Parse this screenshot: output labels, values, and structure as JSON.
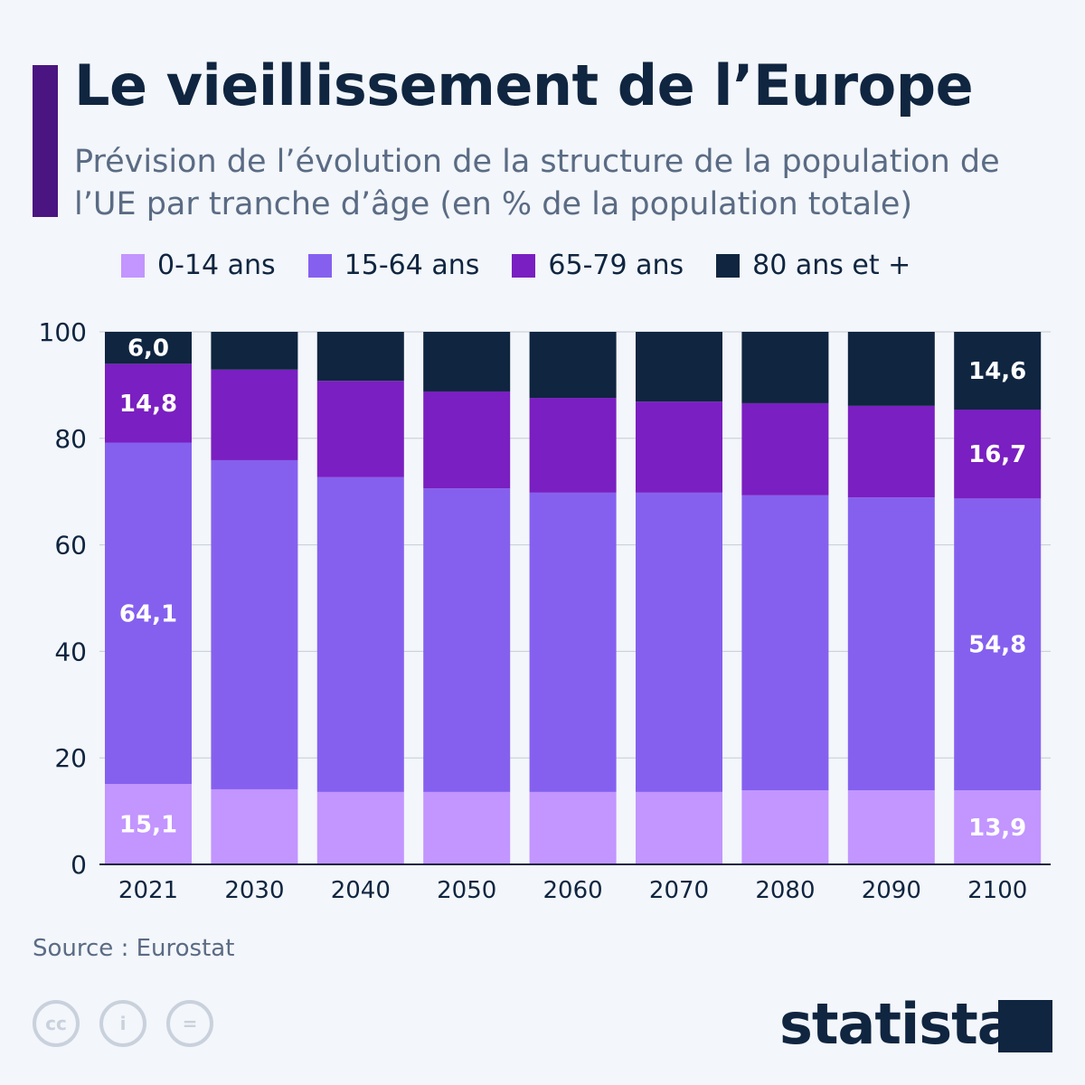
{
  "title": "Le vieillissement de l’Europe",
  "subtitle": "Prévision de l’évolution de la structure de la population de l’UE par tranche d’âge (en % de la population totale)",
  "source": "Source : Eurostat",
  "brand": "statista",
  "license_icons": [
    "cc-icon",
    "attribution-icon",
    "no-derivatives-icon"
  ],
  "chart_data": {
    "type": "bar",
    "stacked": true,
    "title": "",
    "xlabel": "",
    "ylabel": "",
    "ylim": [
      0,
      100
    ],
    "yticks": [
      0,
      20,
      40,
      60,
      80,
      100
    ],
    "grid": true,
    "legend": "top",
    "categories": [
      "2021",
      "2030",
      "2040",
      "2050",
      "2060",
      "2070",
      "2080",
      "2090",
      "2100"
    ],
    "series": [
      {
        "name": "0-14 ans",
        "color": "#c295ff",
        "values": [
          15.1,
          14.1,
          13.6,
          13.6,
          13.6,
          13.6,
          13.9,
          13.9,
          13.9
        ]
      },
      {
        "name": "15-64 ans",
        "color": "#8560ef",
        "values": [
          64.1,
          61.8,
          59.1,
          57.0,
          56.2,
          56.2,
          55.4,
          55.0,
          54.8
        ]
      },
      {
        "name": "65-79 ans",
        "color": "#7a1fc1",
        "values": [
          14.8,
          17.0,
          18.1,
          18.2,
          17.8,
          17.1,
          17.3,
          17.2,
          16.7
        ]
      },
      {
        "name": "80 ans et +",
        "color": "#0f2540",
        "values": [
          6.0,
          7.1,
          9.2,
          11.2,
          12.4,
          13.1,
          13.4,
          13.9,
          14.6
        ]
      }
    ],
    "data_labels": {
      "2021": [
        "15,1",
        "64,1",
        "14,8",
        "6,0"
      ],
      "2100": [
        "13,9",
        "54,8",
        "16,7",
        "14,6"
      ]
    }
  }
}
